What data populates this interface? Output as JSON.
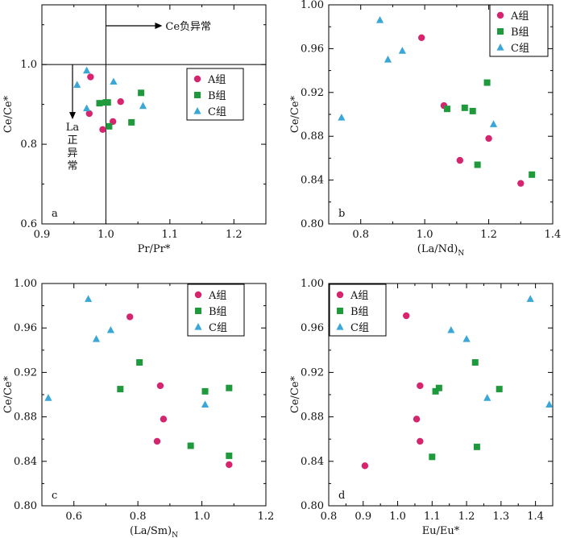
{
  "colors": {
    "A": "#d6246e",
    "B": "#1e9a3c",
    "C": "#3aa7d6",
    "axis": "#000000"
  },
  "chart_data": [
    {
      "id": "a",
      "type": "scatter",
      "panel_label": "a",
      "xlabel": "Pr/Pr*",
      "xlabel_sub": "",
      "ylabel": "Ce/Ce*",
      "xlim": [
        0.9,
        1.25
      ],
      "ylim": [
        0.6,
        1.15
      ],
      "xticks": [
        0.9,
        1.0,
        1.1,
        1.2
      ],
      "xtick_labels": [
        "0.9",
        "1.0",
        "1.1",
        "1.2"
      ],
      "yticks": [
        0.6,
        0.8,
        1.0
      ],
      "ytick_labels": [
        "0.6",
        "0.8",
        "1.0"
      ],
      "ref_x": 1.0,
      "ref_y": 1.0,
      "annotations": {
        "ce": "Ce负异常",
        "la_lines": [
          "La",
          "正",
          "异",
          "常"
        ]
      },
      "legend": {
        "title": "",
        "items": [
          "A组",
          "B组",
          "C组"
        ]
      },
      "series": [
        {
          "name": "A组",
          "marker": "circle",
          "points": [
            [
              0.976,
              0.969
            ],
            [
              0.974,
              0.877
            ],
            [
              0.995,
              0.837
            ],
            [
              1.011,
              0.857
            ],
            [
              1.023,
              0.907
            ]
          ]
        },
        {
          "name": "B组",
          "marker": "square",
          "points": [
            [
              0.99,
              0.903
            ],
            [
              1.0,
              0.905
            ],
            [
              1.003,
              0.905
            ],
            [
              1.005,
              0.845
            ],
            [
              1.04,
              0.855
            ],
            [
              1.055,
              0.929
            ]
          ]
        },
        {
          "name": "C组",
          "marker": "triangle",
          "points": [
            [
              0.97,
              0.985
            ],
            [
              0.955,
              0.949
            ],
            [
              0.97,
              0.89
            ],
            [
              1.012,
              0.957
            ],
            [
              1.058,
              0.896
            ]
          ]
        }
      ]
    },
    {
      "id": "b",
      "type": "scatter",
      "panel_label": "b",
      "xlabel": "(La/Nd)",
      "xlabel_sub": "N",
      "ylabel": "Ce/Ce*",
      "xlim": [
        0.7,
        1.4
      ],
      "ylim": [
        0.8,
        1.0
      ],
      "xticks": [
        0.8,
        1.0,
        1.2,
        1.4
      ],
      "xtick_labels": [
        "0.8",
        "1.0",
        "1.2",
        "1.4"
      ],
      "yticks": [
        0.8,
        0.84,
        0.88,
        0.92,
        0.96,
        1.0
      ],
      "ytick_labels": [
        "0.80",
        "0.84",
        "0.88",
        "0.92",
        "0.96",
        "1.00"
      ],
      "legend": {
        "title": "",
        "items": [
          "A组",
          "B组",
          "C组"
        ]
      },
      "series": [
        {
          "name": "A组",
          "marker": "circle",
          "points": [
            [
              0.99,
              0.97
            ],
            [
              1.06,
              0.908
            ],
            [
              1.11,
              0.858
            ],
            [
              1.2,
              0.878
            ],
            [
              1.3,
              0.837
            ]
          ]
        },
        {
          "name": "B组",
          "marker": "square",
          "points": [
            [
              1.07,
              0.905
            ],
            [
              1.125,
              0.906
            ],
            [
              1.15,
              0.903
            ],
            [
              1.165,
              0.854
            ],
            [
              1.195,
              0.929
            ],
            [
              1.335,
              0.845
            ]
          ]
        },
        {
          "name": "C组",
          "marker": "triangle",
          "points": [
            [
              0.74,
              0.897
            ],
            [
              0.86,
              0.986
            ],
            [
              0.885,
              0.95
            ],
            [
              0.93,
              0.958
            ],
            [
              1.215,
              0.891
            ]
          ]
        }
      ]
    },
    {
      "id": "c",
      "type": "scatter",
      "panel_label": "c",
      "xlabel": "(La/Sm)",
      "xlabel_sub": "N",
      "ylabel": "Ce/Ce*",
      "xlim": [
        0.5,
        1.2
      ],
      "ylim": [
        0.8,
        1.0
      ],
      "xticks": [
        0.6,
        0.8,
        1.0,
        1.2
      ],
      "xtick_labels": [
        "0.6",
        "0.8",
        "1.0",
        "1.2"
      ],
      "yticks": [
        0.8,
        0.84,
        0.88,
        0.92,
        0.96,
        1.0
      ],
      "ytick_labels": [
        "0.80",
        "0.84",
        "0.88",
        "0.92",
        "0.96",
        "1.00"
      ],
      "legend": {
        "title": "",
        "items": [
          "A组",
          "B组",
          "C组"
        ]
      },
      "series": [
        {
          "name": "A组",
          "marker": "circle",
          "points": [
            [
              0.775,
              0.97
            ],
            [
              0.87,
              0.908
            ],
            [
              0.88,
              0.878
            ],
            [
              0.86,
              0.858
            ],
            [
              1.085,
              0.837
            ]
          ]
        },
        {
          "name": "B组",
          "marker": "square",
          "points": [
            [
              0.745,
              0.905
            ],
            [
              0.805,
              0.929
            ],
            [
              0.965,
              0.854
            ],
            [
              1.01,
              0.903
            ],
            [
              1.085,
              0.906
            ],
            [
              1.085,
              0.845
            ]
          ]
        },
        {
          "name": "C组",
          "marker": "triangle",
          "points": [
            [
              0.52,
              0.897
            ],
            [
              0.645,
              0.986
            ],
            [
              0.67,
              0.95
            ],
            [
              0.715,
              0.958
            ],
            [
              1.01,
              0.891
            ]
          ]
        }
      ]
    },
    {
      "id": "d",
      "type": "scatter",
      "panel_label": "d",
      "xlabel": "Eu/Eu*",
      "xlabel_sub": "",
      "ylabel": "Ce/Ce*",
      "xlim": [
        0.8,
        1.45
      ],
      "ylim": [
        0.8,
        1.0
      ],
      "xticks": [
        0.8,
        0.9,
        1.0,
        1.1,
        1.2,
        1.3,
        1.4
      ],
      "xtick_labels": [
        "0.8",
        "0.9",
        "1.0",
        "1.1",
        "1.2",
        "1.3",
        "1.4"
      ],
      "yticks": [
        0.8,
        0.84,
        0.88,
        0.92,
        0.96,
        1.0
      ],
      "ytick_labels": [
        "0.80",
        "0.84",
        "0.88",
        "0.92",
        "0.96",
        "1.00"
      ],
      "legend": {
        "title": "",
        "items": [
          "A组",
          "B组",
          "C组"
        ]
      },
      "series": [
        {
          "name": "A组",
          "marker": "circle",
          "points": [
            [
              0.905,
              0.836
            ],
            [
              1.025,
              0.971
            ],
            [
              1.055,
              0.878
            ],
            [
              1.065,
              0.908
            ],
            [
              1.065,
              0.858
            ]
          ]
        },
        {
          "name": "B组",
          "marker": "square",
          "points": [
            [
              1.1,
              0.844
            ],
            [
              1.11,
              0.903
            ],
            [
              1.12,
              0.906
            ],
            [
              1.225,
              0.929
            ],
            [
              1.23,
              0.853
            ],
            [
              1.295,
              0.905
            ]
          ]
        },
        {
          "name": "C组",
          "marker": "triangle",
          "points": [
            [
              1.155,
              0.958
            ],
            [
              1.2,
              0.95
            ],
            [
              1.26,
              0.897
            ],
            [
              1.385,
              0.986
            ],
            [
              1.44,
              0.891
            ]
          ]
        }
      ]
    }
  ]
}
